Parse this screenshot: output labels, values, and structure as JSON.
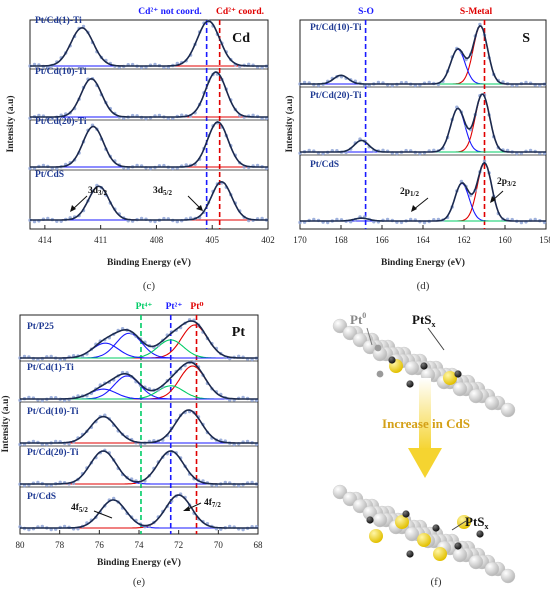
{
  "chart_data": [
    {
      "type": "line",
      "element_label": "Cd",
      "panel_label": "(c)",
      "xlabel": "Binding Energy (eV)",
      "ylabel": "Intensity (a.u)",
      "xlim": [
        414.8,
        402
      ],
      "xticks": [
        "414",
        "411",
        "408",
        "405",
        "402"
      ],
      "reference_lines": [
        {
          "x": 405.3,
          "label": "Cd²⁺ not coord.",
          "color": "#1a1aff"
        },
        {
          "x": 404.6,
          "label": "Cd²⁺ coord.",
          "color": "#e00000"
        }
      ],
      "peak_annotations": [
        "3d",
        "3/2",
        "3d",
        "5/2"
      ],
      "series": [
        {
          "name": "Pt/Cd(1)-Ti",
          "peaks": [
            {
              "center": 412.0,
              "height": 0.85,
              "width": 0.6
            },
            {
              "center": 405.2,
              "height": 1.0,
              "width": 0.6
            }
          ]
        },
        {
          "name": "Pt/Cd(10)-Ti",
          "peaks": [
            {
              "center": 411.5,
              "height": 0.85,
              "width": 0.55
            },
            {
              "center": 404.8,
              "height": 1.0,
              "width": 0.55
            }
          ]
        },
        {
          "name": "Pt/Cd(20)-Ti",
          "peaks": [
            {
              "center": 411.4,
              "height": 0.9,
              "width": 0.55
            },
            {
              "center": 404.7,
              "height": 1.0,
              "width": 0.55
            }
          ]
        },
        {
          "name": "Pt/CdS",
          "peaks": [
            {
              "center": 411.1,
              "height": 0.75,
              "width": 0.55
            },
            {
              "center": 404.5,
              "height": 0.85,
              "width": 0.55
            }
          ]
        }
      ]
    },
    {
      "type": "line",
      "element_label": "S",
      "panel_label": "(d)",
      "xlabel": "Binding Energy (eV)",
      "ylabel": "Intensity (a.u)",
      "xlim": [
        170,
        158
      ],
      "xticks": [
        "170",
        "168",
        "166",
        "164",
        "162",
        "160",
        "158"
      ],
      "reference_lines": [
        {
          "x": 166.8,
          "label": "S-O",
          "color": "#1a1aff"
        },
        {
          "x": 161.0,
          "label": "S-Metal",
          "color": "#e00000"
        }
      ],
      "peak_annotations": [
        "2p",
        "1/2",
        "2p",
        "3/2"
      ],
      "series": [
        {
          "name": "Pt/Cd(10)-Ti",
          "peaks": [
            {
              "center": 161.2,
              "height": 1.0
            },
            {
              "center": 162.3,
              "height": 0.6
            },
            {
              "center": 168.0,
              "height": 0.15
            }
          ]
        },
        {
          "name": "Pt/Cd(20)-Ti",
          "peaks": [
            {
              "center": 161.1,
              "height": 1.0
            },
            {
              "center": 162.3,
              "height": 0.75
            },
            {
              "center": 167.0,
              "height": 0.2
            }
          ]
        },
        {
          "name": "Pt/CdS",
          "peaks": [
            {
              "center": 161.0,
              "height": 1.0
            },
            {
              "center": 162.1,
              "height": 0.65
            },
            {
              "center": 167.0,
              "height": 0.05
            }
          ]
        }
      ]
    },
    {
      "type": "line",
      "element_label": "Pt",
      "panel_label": "(e)",
      "xlabel": "Binding Energy (eV)",
      "ylabel": "Intensity (a.u)",
      "xlim": [
        80,
        68
      ],
      "xticks": [
        "80",
        "78",
        "76",
        "74",
        "72",
        "70",
        "68"
      ],
      "reference_lines": [
        {
          "x": 73.9,
          "label": "Pt⁴⁺",
          "color": "#00cc66"
        },
        {
          "x": 72.4,
          "label": "Pt²⁺",
          "color": "#1a1aff"
        },
        {
          "x": 71.1,
          "label": "Pt⁰",
          "color": "#e00000"
        }
      ],
      "peak_annotations": [
        "4f",
        "5/2",
        "4f",
        "7/2"
      ],
      "series": [
        {
          "name": "Pt/P25",
          "peaks": [
            {
              "center": 71.2,
              "height": 1.0
            },
            {
              "center": 74.5,
              "height": 0.75
            },
            {
              "center": 72.4,
              "height": 0.55
            },
            {
              "center": 75.7,
              "height": 0.45
            }
          ]
        },
        {
          "name": "Pt/Cd(1)-Ti",
          "peaks": [
            {
              "center": 71.3,
              "height": 1.0
            },
            {
              "center": 74.6,
              "height": 0.7
            },
            {
              "center": 72.4,
              "height": 0.4
            },
            {
              "center": 75.8,
              "height": 0.3
            }
          ]
        },
        {
          "name": "Pt/Cd(10)-Ti",
          "peaks": [
            {
              "center": 71.5,
              "height": 1.0
            },
            {
              "center": 75.8,
              "height": 0.8
            }
          ]
        },
        {
          "name": "Pt/Cd(20)-Ti",
          "peaks": [
            {
              "center": 72.4,
              "height": 1.0
            },
            {
              "center": 75.8,
              "height": 1.0
            }
          ]
        },
        {
          "name": "Pt/CdS",
          "peaks": [
            {
              "center": 72.0,
              "height": 1.0
            },
            {
              "center": 75.3,
              "height": 0.85
            }
          ]
        }
      ]
    }
  ],
  "schematic": {
    "panel_label": "(f)",
    "label_pt0": "Pt",
    "label_pt0_sup": "0",
    "label_pts": "PtS",
    "label_pts_sub": "x",
    "label_pts_bottom": "PtS",
    "label_pts_bottom_sub": "x",
    "arrow_text": "Increase in CdS"
  }
}
